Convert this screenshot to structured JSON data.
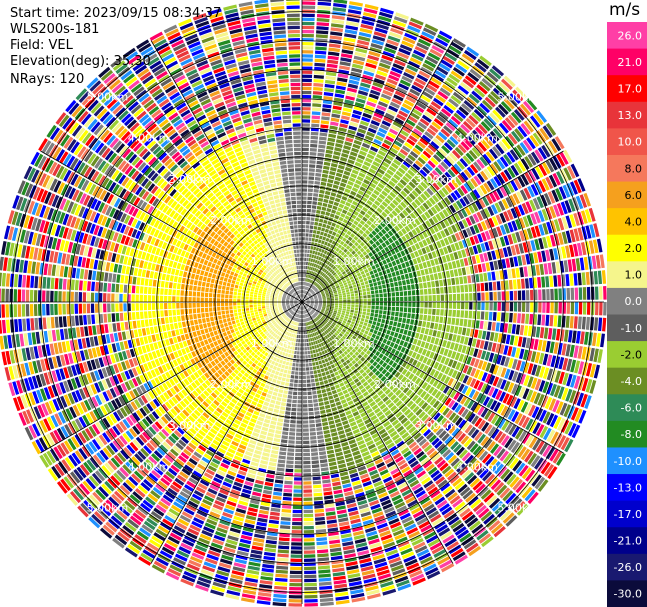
{
  "info": {
    "start_time": "Start time: 2023/09/15 08:34:37",
    "site": "WLS200s-181",
    "field": "Field: VEL",
    "elevation": "Elevation(deg): 35.30",
    "nrays": "NRays: 120"
  },
  "chart_data": {
    "type": "heatmap",
    "projection": "polar-ppi",
    "field": "VEL",
    "units": "m/s",
    "n_rays": 120,
    "elevation_deg": 35.3,
    "range_rings": [
      {
        "label": "1.00km",
        "value": 1.0
      },
      {
        "label": "2.00km",
        "value": 2.0
      },
      {
        "label": "3.00km",
        "value": 3.0
      },
      {
        "label": "4.00km",
        "value": 4.0
      },
      {
        "label": "5.00km",
        "value": 5.0
      }
    ],
    "max_range_km": 5.2,
    "spokes_deg": [
      0,
      30,
      60,
      90,
      120,
      150,
      180,
      210,
      240,
      270,
      300,
      330
    ],
    "pattern": {
      "approaching_negative_sector": "east",
      "receding_positive_sector": "west",
      "noise_beyond_km": 3.0
    },
    "colorbar": {
      "title": "m/s",
      "tick_labels": [
        "26.0",
        "21.0",
        "17.0",
        "13.0",
        "10.0",
        "8.0",
        "6.0",
        "4.0",
        "2.0",
        "1.0",
        "0.0",
        "-1.0",
        "-2.0",
        "-4.0",
        "-6.0",
        "-8.0",
        "-10.0",
        "-13.0",
        "-17.0",
        "-21.0",
        "-26.0",
        "-30.0"
      ],
      "colors": [
        "#ff3fa6",
        "#ff0066",
        "#ff0000",
        "#e8343a",
        "#f0554a",
        "#f5785c",
        "#f5a01e",
        "#ffc300",
        "#ffff00",
        "#f5f58c",
        "#808080",
        "#5e5e5e",
        "#9acd32",
        "#6b8e23",
        "#2e8b57",
        "#228b22",
        "#1e90ff",
        "#0000ff",
        "#0000cd",
        "#00008b",
        "#191970",
        "#0b0b3b"
      ]
    }
  }
}
